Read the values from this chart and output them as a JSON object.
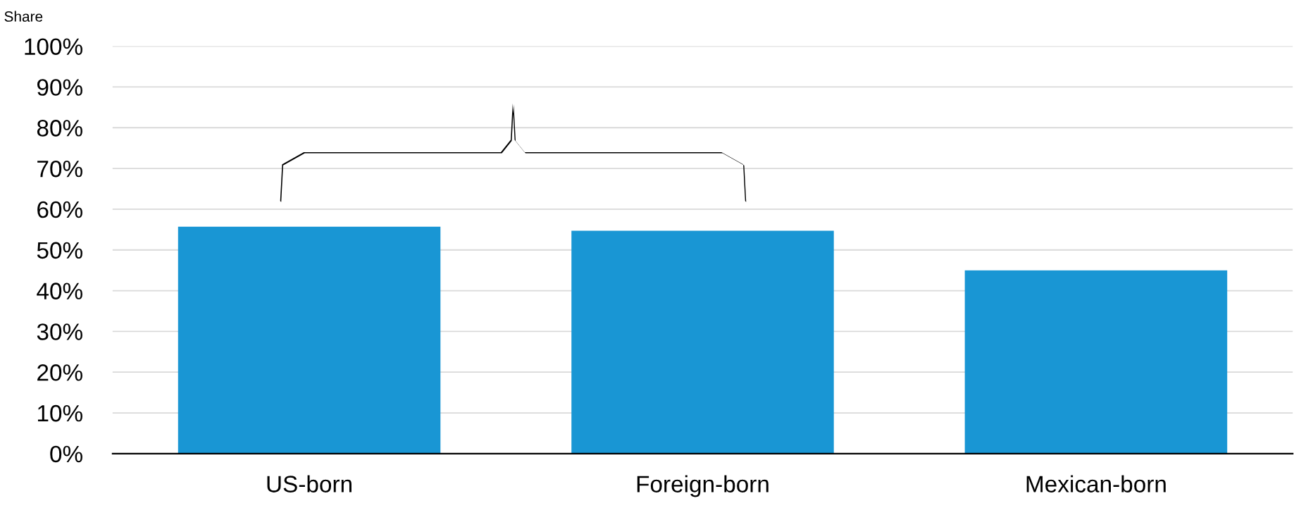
{
  "chart_data": {
    "type": "bar",
    "ylabel": "Share",
    "categories": [
      "US-born",
      "Foreign-born",
      "Mexican-born"
    ],
    "values": [
      55.7,
      54.7,
      45
    ],
    "color": "#1996d4",
    "ylim": [
      0,
      100
    ],
    "yticks": [
      {
        "value": 0,
        "label": "0%"
      },
      {
        "value": 10,
        "label": "10%"
      },
      {
        "value": 20,
        "label": "20%"
      },
      {
        "value": 30,
        "label": "30%"
      },
      {
        "value": 40,
        "label": "40%"
      },
      {
        "value": 50,
        "label": "50%"
      },
      {
        "value": 60,
        "label": "60%"
      },
      {
        "value": 70,
        "label": "70%"
      },
      {
        "value": 80,
        "label": "80%"
      },
      {
        "value": 90,
        "label": "90%"
      },
      {
        "value": 100,
        "label": "100%"
      }
    ],
    "grid": "y",
    "legend": false
  }
}
